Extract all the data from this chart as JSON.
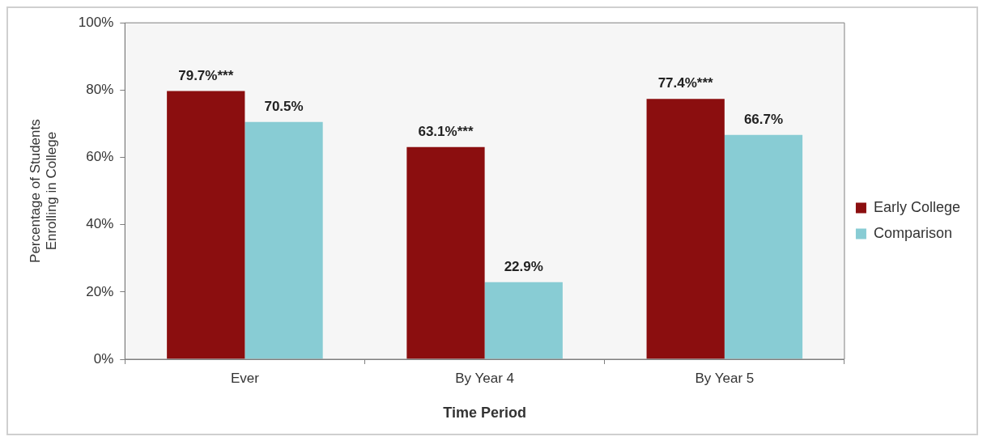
{
  "chart_data": {
    "type": "bar",
    "xlabel": "Time Period",
    "ylabel": "Percentage of Students\nEnrolling in College",
    "categories": [
      "Ever",
      "By Year 4",
      "By Year 5"
    ],
    "series": [
      {
        "name": "Early College",
        "color": "#8b0e0f",
        "values": [
          79.7,
          63.1,
          77.4
        ],
        "value_labels": [
          "79.7%***",
          "63.1%***",
          "77.4%***"
        ]
      },
      {
        "name": "Comparison",
        "color": "#88ccd4",
        "values": [
          70.5,
          22.9,
          66.7
        ],
        "value_labels": [
          "70.5%",
          "22.9%",
          "66.7%"
        ]
      }
    ],
    "ylim": [
      0,
      100
    ],
    "yticks": [
      {
        "value": 0,
        "label": "0%"
      },
      {
        "value": 20,
        "label": "20%"
      },
      {
        "value": 40,
        "label": "40%"
      },
      {
        "value": 60,
        "label": "60%"
      },
      {
        "value": 80,
        "label": "80%"
      },
      {
        "value": 100,
        "label": "100%"
      }
    ],
    "grid": false,
    "legend": "right"
  }
}
